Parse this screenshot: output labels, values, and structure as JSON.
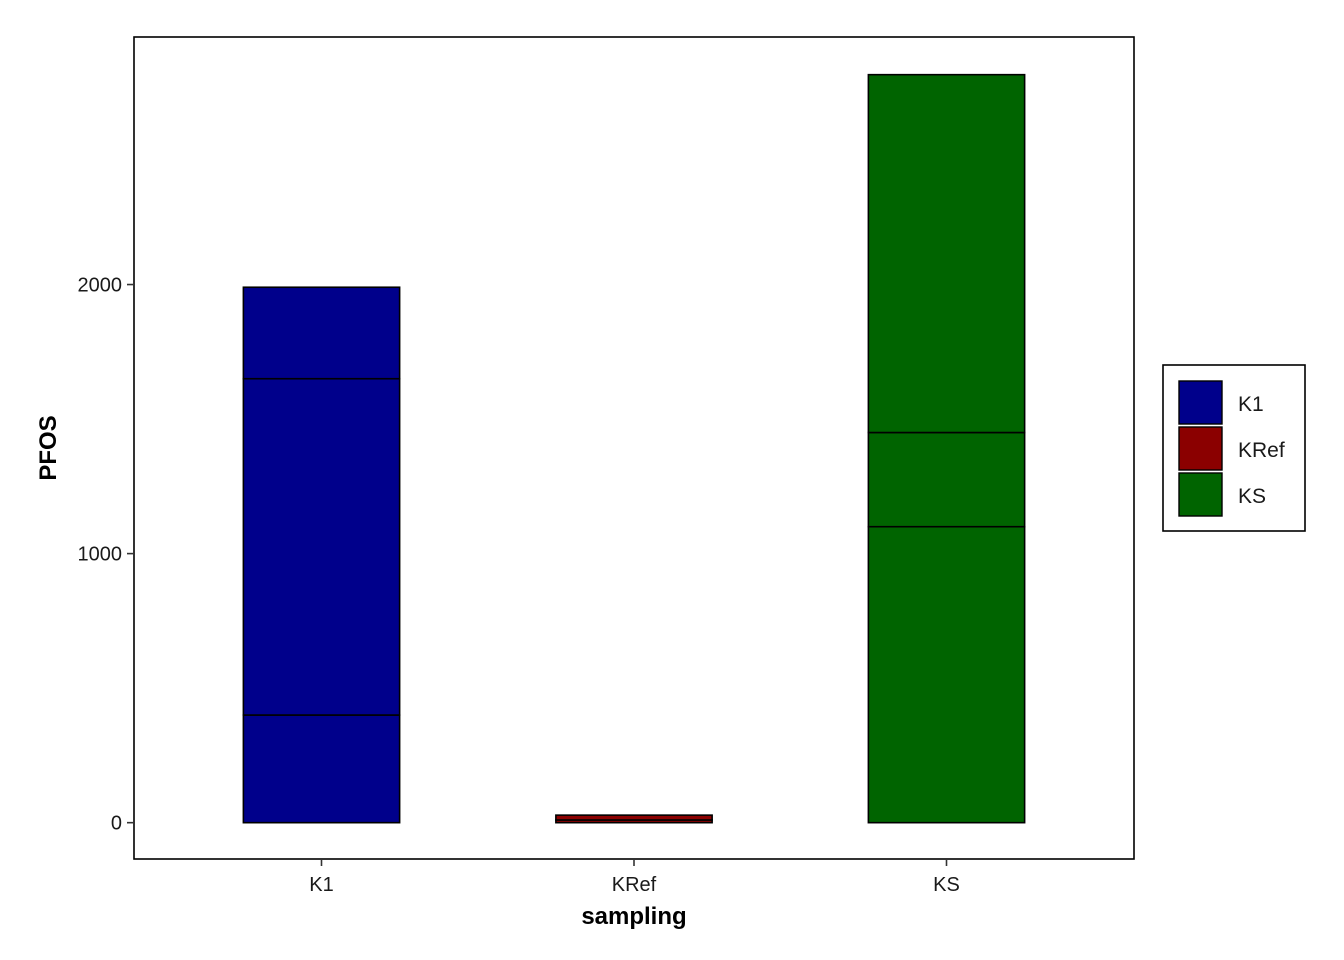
{
  "chart_data": {
    "type": "bar",
    "stacked": true,
    "xlabel": "sampling",
    "ylabel": "PFOS",
    "categories": [
      "K1",
      "KRef",
      "KS"
    ],
    "colors": {
      "K1": "#00008B",
      "KRef": "#8B0000",
      "KS": "#006400"
    },
    "stacks": [
      {
        "category": "K1",
        "segments": [
          400,
          1250,
          340
        ]
      },
      {
        "category": "KRef",
        "segments": [
          10,
          18
        ]
      },
      {
        "category": "KS",
        "segments": [
          1100,
          350,
          1330
        ]
      }
    ],
    "yticks": [
      0,
      1000,
      2000
    ],
    "ylim": [
      -135,
      2920
    ],
    "grid": false,
    "legend": {
      "position": "right",
      "title": "",
      "entries": [
        "K1",
        "KRef",
        "KS"
      ]
    }
  }
}
